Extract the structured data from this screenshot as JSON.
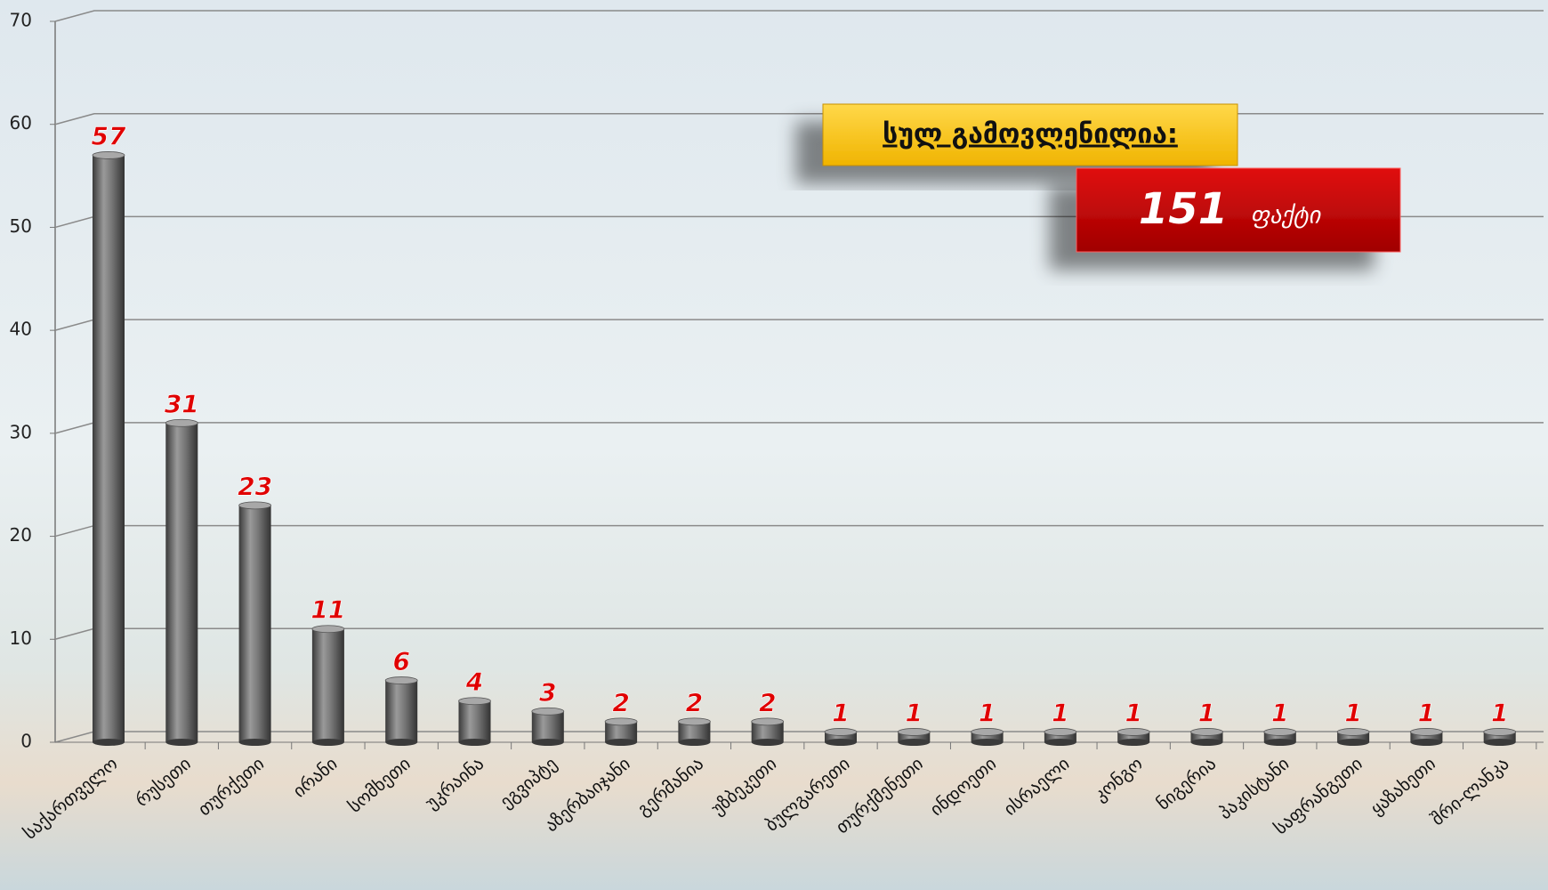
{
  "chart_data": {
    "type": "bar",
    "categories": [
      "საქართველო",
      "რუსეთი",
      "თურქეთი",
      "ირანი",
      "სომხეთი",
      "უკრაინა",
      "ეგვიპტე",
      "აზერბაიჯანი",
      "გერმანია",
      "უზბეკეთი",
      "ბულგარეთი",
      "თურქმენეთი",
      "ინდოეთი",
      "ისრაელი",
      "კონგო",
      "ნიგერია",
      "პაკისტანი",
      "საფრანგეთი",
      "ყაზახეთი",
      "შრი-ლანკა"
    ],
    "values": [
      57,
      31,
      23,
      11,
      6,
      4,
      3,
      2,
      2,
      2,
      1,
      1,
      1,
      1,
      1,
      1,
      1,
      1,
      1,
      1
    ],
    "color": "#6e6e6e",
    "label_color": "#e00000",
    "ylim": [
      0,
      70
    ],
    "yticks": [
      0,
      10,
      20,
      30,
      40,
      50,
      60,
      70
    ],
    "grid": true,
    "annotation": "სულ გამოვლენილია:",
    "total": "151",
    "total_unit": "ფაქტი"
  }
}
